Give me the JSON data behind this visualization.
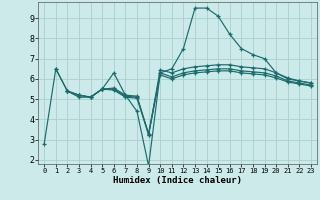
{
  "xlabel": "Humidex (Indice chaleur)",
  "background_color": "#cceaea",
  "grid_color": "#aacfcf",
  "line_color": "#1a6b6b",
  "xlim": [
    -0.5,
    23.5
  ],
  "ylim": [
    1.8,
    9.8
  ],
  "yticks": [
    2,
    3,
    4,
    5,
    6,
    7,
    8,
    9
  ],
  "xticks": [
    0,
    1,
    2,
    3,
    4,
    5,
    6,
    7,
    8,
    9,
    10,
    11,
    12,
    13,
    14,
    15,
    16,
    17,
    18,
    19,
    20,
    21,
    22,
    23
  ],
  "lines": [
    {
      "x": [
        0,
        1,
        2,
        3,
        4,
        5,
        6,
        7,
        8,
        9,
        10,
        11,
        12,
        13,
        14,
        15,
        16,
        17,
        18,
        19,
        20,
        21,
        22,
        23
      ],
      "y": [
        2.8,
        6.5,
        5.4,
        5.1,
        5.1,
        5.5,
        6.3,
        5.2,
        4.4,
        1.7,
        6.3,
        6.5,
        7.5,
        9.5,
        9.5,
        9.1,
        8.2,
        7.5,
        7.2,
        7.0,
        6.3,
        6.0,
        5.9,
        5.8
      ]
    },
    {
      "x": [
        1,
        2,
        3,
        4,
        5,
        6,
        7,
        8,
        9,
        10,
        11,
        12,
        13,
        14,
        15,
        16,
        17,
        18,
        19,
        20,
        21,
        22,
        23
      ],
      "y": [
        6.5,
        5.4,
        5.2,
        5.1,
        5.5,
        5.55,
        5.2,
        5.15,
        3.25,
        6.45,
        6.3,
        6.5,
        6.6,
        6.65,
        6.7,
        6.7,
        6.6,
        6.55,
        6.5,
        6.3,
        6.05,
        5.9,
        5.8
      ]
    },
    {
      "x": [
        2,
        3,
        4,
        5,
        6,
        7,
        8,
        9,
        10,
        11,
        12,
        13,
        14,
        15,
        16,
        17,
        18,
        19,
        20,
        21,
        22,
        23
      ],
      "y": [
        5.4,
        5.2,
        5.1,
        5.5,
        5.5,
        5.15,
        5.1,
        3.3,
        6.3,
        6.1,
        6.3,
        6.4,
        6.45,
        6.5,
        6.5,
        6.4,
        6.35,
        6.3,
        6.15,
        5.9,
        5.8,
        5.7
      ]
    },
    {
      "x": [
        2,
        3,
        4,
        5,
        6,
        7,
        8,
        9,
        10,
        11,
        12,
        13,
        14,
        15,
        16,
        17,
        18,
        19,
        20,
        21,
        22,
        23
      ],
      "y": [
        5.4,
        5.2,
        5.1,
        5.5,
        5.45,
        5.1,
        5.05,
        3.25,
        6.2,
        6.0,
        6.2,
        6.3,
        6.35,
        6.4,
        6.4,
        6.3,
        6.25,
        6.2,
        6.05,
        5.85,
        5.75,
        5.65
      ]
    }
  ]
}
